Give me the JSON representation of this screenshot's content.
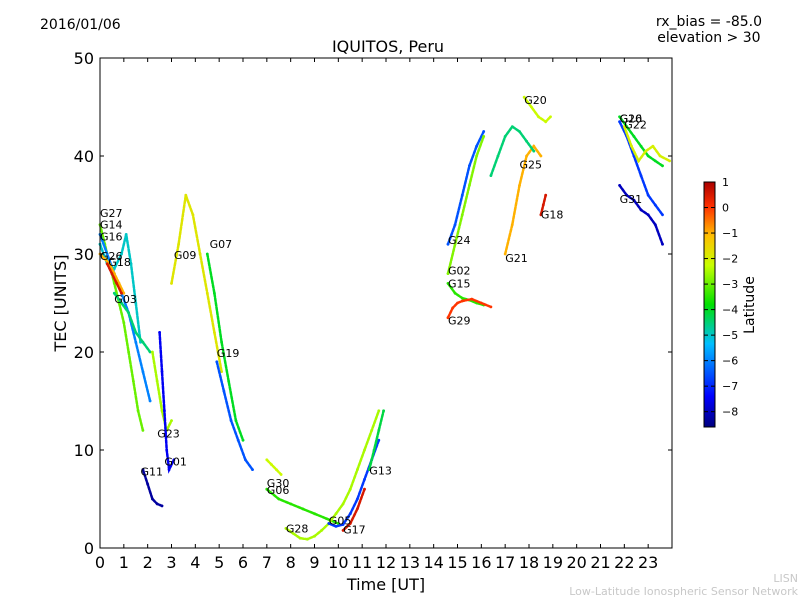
{
  "header": {
    "date": "2016/01/06",
    "rx_bias": "rx_bias = -85.0",
    "elevation": "elevation > 30"
  },
  "footer": {
    "credit_line1": "LISN",
    "credit_line2": "Low-Latitude Ionospheric Sensor Network"
  },
  "chart_data": {
    "type": "scatter",
    "title": "IQUITOS, Peru",
    "xlabel": "Time [UT]",
    "ylabel": "TEC [UNITS]",
    "xlim": [
      0,
      24
    ],
    "ylim": [
      0,
      50
    ],
    "xticks": [
      0,
      1,
      2,
      3,
      4,
      5,
      6,
      7,
      8,
      9,
      10,
      11,
      12,
      13,
      14,
      15,
      16,
      17,
      18,
      19,
      20,
      21,
      22,
      23
    ],
    "yticks": [
      0,
      10,
      20,
      30,
      40,
      50
    ],
    "grid": false,
    "colorbar": {
      "label": "Latitude",
      "range": [
        -8.6,
        1.0
      ],
      "ticks": [
        1,
        0,
        -1,
        -2,
        -3,
        -4,
        -5,
        -6,
        -7,
        -8
      ]
    },
    "series": [
      {
        "name": "G27",
        "label_at": [
          0.0,
          33.8
        ],
        "points": [
          [
            0.0,
            33
          ],
          [
            0.2,
            31
          ],
          [
            0.4,
            29
          ],
          [
            0.6,
            27
          ],
          [
            0.8,
            25
          ],
          [
            1.0,
            23
          ],
          [
            1.2,
            20
          ],
          [
            1.4,
            17
          ],
          [
            1.6,
            14
          ],
          [
            1.8,
            12
          ]
        ],
        "lat": -3.0
      },
      {
        "name": "G14",
        "label_at": [
          0.0,
          32.6
        ],
        "points": [
          [
            0.0,
            32
          ],
          [
            0.3,
            30
          ],
          [
            0.6,
            28
          ],
          [
            0.9,
            26
          ],
          [
            1.2,
            24
          ],
          [
            1.5,
            21
          ],
          [
            1.8,
            18
          ],
          [
            2.1,
            15
          ]
        ],
        "lat": -6.0
      },
      {
        "name": "G16",
        "label_at": [
          0.0,
          31.4
        ],
        "points": [
          [
            0.0,
            31
          ],
          [
            0.3,
            29
          ],
          [
            0.6,
            28.5
          ],
          [
            0.9,
            30
          ],
          [
            1.1,
            32
          ],
          [
            1.3,
            29
          ],
          [
            1.5,
            25
          ],
          [
            1.7,
            21
          ]
        ],
        "lat": -5.0
      },
      {
        "name": "G26",
        "label_at": [
          0.0,
          29.4
        ],
        "points": [
          [
            0.0,
            30
          ],
          [
            0.2,
            29.5
          ],
          [
            0.4,
            29
          ],
          [
            0.6,
            28
          ],
          [
            0.8,
            27
          ],
          [
            1.0,
            26
          ]
        ],
        "lat": -1.0
      },
      {
        "name": "G18",
        "label_at": [
          0.35,
          28.8
        ],
        "points": [
          [
            0.3,
            29
          ],
          [
            0.5,
            28
          ],
          [
            0.7,
            27
          ],
          [
            0.9,
            26
          ]
        ],
        "lat": 0.5
      },
      {
        "name": "G03",
        "label_at": [
          0.6,
          25.0
        ],
        "points": [
          [
            0.6,
            26
          ],
          [
            0.9,
            25
          ],
          [
            1.2,
            24
          ],
          [
            1.5,
            22
          ],
          [
            1.8,
            21
          ],
          [
            2.1,
            20
          ]
        ],
        "lat": -4.5
      },
      {
        "name": "G11",
        "label_at": [
          1.7,
          7.4
        ],
        "points": [
          [
            1.8,
            8
          ],
          [
            2.0,
            6.5
          ],
          [
            2.2,
            5
          ],
          [
            2.4,
            4.5
          ],
          [
            2.6,
            4.3
          ]
        ],
        "lat": -8.3
      },
      {
        "name": "G23",
        "label_at": [
          2.4,
          11.3
        ],
        "points": [
          [
            2.2,
            20
          ],
          [
            2.4,
            17
          ],
          [
            2.6,
            14
          ],
          [
            2.8,
            12
          ],
          [
            3.0,
            13
          ]
        ],
        "lat": -2.5
      },
      {
        "name": "G01",
        "label_at": [
          2.7,
          8.4
        ],
        "points": [
          [
            2.5,
            22
          ],
          [
            2.6,
            18
          ],
          [
            2.7,
            14
          ],
          [
            2.8,
            10
          ],
          [
            2.9,
            8
          ],
          [
            3.1,
            9
          ]
        ],
        "lat": -7.5
      },
      {
        "name": "G09",
        "label_at": [
          3.1,
          29.5
        ],
        "points": [
          [
            3.0,
            27
          ],
          [
            3.3,
            31
          ],
          [
            3.6,
            36
          ],
          [
            3.9,
            34
          ],
          [
            4.2,
            30
          ],
          [
            4.5,
            26
          ],
          [
            4.8,
            22
          ],
          [
            5.1,
            18
          ]
        ],
        "lat": -1.8
      },
      {
        "name": "G07",
        "label_at": [
          4.6,
          30.6
        ],
        "points": [
          [
            4.5,
            30
          ],
          [
            4.8,
            26
          ],
          [
            5.1,
            21
          ],
          [
            5.4,
            17
          ],
          [
            5.7,
            13
          ],
          [
            6.0,
            11
          ]
        ],
        "lat": -4.0
      },
      {
        "name": "G19",
        "label_at": [
          4.9,
          19.5
        ],
        "points": [
          [
            4.9,
            19
          ],
          [
            5.2,
            16
          ],
          [
            5.5,
            13
          ],
          [
            5.8,
            11
          ],
          [
            6.1,
            9
          ],
          [
            6.4,
            8
          ]
        ],
        "lat": -6.5
      },
      {
        "name": "G30",
        "label_at": [
          7.0,
          6.2
        ],
        "points": [
          [
            7.0,
            9
          ],
          [
            7.2,
            8.5
          ],
          [
            7.4,
            8
          ],
          [
            7.6,
            7.5
          ]
        ],
        "lat": -2.2
      },
      {
        "name": "G06",
        "label_at": [
          7.0,
          5.5
        ],
        "points": [
          [
            7.0,
            6
          ],
          [
            7.5,
            5
          ],
          [
            8.0,
            4.5
          ],
          [
            8.5,
            4
          ],
          [
            9.0,
            3.5
          ],
          [
            9.5,
            3
          ],
          [
            10.0,
            2.5
          ]
        ],
        "lat": -3.5
      },
      {
        "name": "G28",
        "label_at": [
          7.8,
          1.6
        ],
        "points": [
          [
            7.8,
            2
          ],
          [
            8.1,
            1.5
          ],
          [
            8.4,
            1
          ],
          [
            8.7,
            0.9
          ],
          [
            9.0,
            1.2
          ],
          [
            9.3,
            1.8
          ],
          [
            9.6,
            2.5
          ],
          [
            9.9,
            3.5
          ],
          [
            10.2,
            4.5
          ],
          [
            10.5,
            6
          ],
          [
            10.8,
            8
          ],
          [
            11.1,
            10
          ],
          [
            11.4,
            12
          ],
          [
            11.7,
            14
          ]
        ],
        "lat": -2.5
      },
      {
        "name": "G05",
        "label_at": [
          9.6,
          2.4
        ],
        "points": [
          [
            9.6,
            2.5
          ],
          [
            9.9,
            2.2
          ],
          [
            10.2,
            2.4
          ],
          [
            10.5,
            3.5
          ],
          [
            10.8,
            5
          ],
          [
            11.1,
            7
          ],
          [
            11.4,
            9
          ],
          [
            11.7,
            11
          ]
        ],
        "lat": -6.8
      },
      {
        "name": "G17",
        "label_at": [
          10.2,
          1.5
        ],
        "points": [
          [
            10.2,
            1.8
          ],
          [
            10.5,
            2.5
          ],
          [
            10.8,
            4
          ],
          [
            11.1,
            6
          ]
        ],
        "lat": 0.5
      },
      {
        "name": "G13",
        "label_at": [
          11.3,
          7.5
        ],
        "points": [
          [
            11.3,
            8
          ],
          [
            11.5,
            10
          ],
          [
            11.7,
            12
          ],
          [
            11.9,
            14
          ]
        ],
        "lat": -4.2
      },
      {
        "name": "G24",
        "label_at": [
          14.6,
          31.0
        ],
        "points": [
          [
            14.6,
            31
          ],
          [
            14.9,
            33
          ],
          [
            15.2,
            36
          ],
          [
            15.5,
            39
          ],
          [
            15.8,
            41
          ],
          [
            16.1,
            42.5
          ]
        ],
        "lat": -6.5
      },
      {
        "name": "G02",
        "label_at": [
          14.6,
          27.9
        ],
        "points": [
          [
            14.6,
            28
          ],
          [
            14.9,
            31
          ],
          [
            15.2,
            34
          ],
          [
            15.5,
            37
          ],
          [
            15.8,
            40
          ],
          [
            16.1,
            42
          ]
        ],
        "lat": -2.8
      },
      {
        "name": "G15",
        "label_at": [
          14.6,
          26.6
        ],
        "points": [
          [
            14.6,
            27
          ],
          [
            14.9,
            26
          ],
          [
            15.2,
            25.5
          ],
          [
            15.5,
            25.3
          ],
          [
            15.8,
            25
          ],
          [
            16.1,
            24.8
          ]
        ],
        "lat": -3.5
      },
      {
        "name": "G29",
        "label_at": [
          14.6,
          22.8
        ],
        "points": [
          [
            14.6,
            23.5
          ],
          [
            14.8,
            24.5
          ],
          [
            15.0,
            25
          ],
          [
            15.2,
            25.2
          ],
          [
            15.6,
            25.4
          ],
          [
            16.0,
            25
          ],
          [
            16.4,
            24.6
          ]
        ],
        "lat": 0.0
      },
      {
        "name": "G21",
        "label_at": [
          17.0,
          29.2
        ],
        "points": [
          [
            17.0,
            30
          ],
          [
            17.3,
            33
          ],
          [
            17.6,
            37
          ],
          [
            17.9,
            40
          ],
          [
            18.2,
            41
          ],
          [
            18.5,
            40
          ]
        ],
        "lat": -1.0
      },
      {
        "name": "G20",
        "label_at": [
          17.8,
          45.3
        ],
        "points": [
          [
            17.8,
            46
          ],
          [
            18.1,
            45
          ],
          [
            18.4,
            44
          ],
          [
            18.7,
            43.5
          ],
          [
            18.9,
            44
          ]
        ],
        "lat": -2.2
      },
      {
        "name": "G25",
        "label_at": [
          17.6,
          38.7
        ],
        "points": [
          [
            16.4,
            38
          ],
          [
            16.7,
            40
          ],
          [
            17.0,
            42
          ],
          [
            17.3,
            43
          ],
          [
            17.6,
            42.5
          ],
          [
            17.9,
            41.5
          ],
          [
            18.2,
            40.5
          ]
        ],
        "lat": -4.5
      },
      {
        "name": "G18",
        "label_at": [
          18.5,
          33.6
        ],
        "points": [
          [
            18.5,
            34
          ],
          [
            18.6,
            35
          ],
          [
            18.7,
            36
          ]
        ],
        "lat": 0.5
      },
      {
        "name": "G10",
        "label_at": [
          21.8,
          43.4
        ],
        "points": [
          [
            21.8,
            44
          ],
          [
            22.1,
            43
          ],
          [
            22.4,
            42
          ],
          [
            22.7,
            41
          ],
          [
            23.0,
            40
          ],
          [
            23.3,
            39.5
          ],
          [
            23.6,
            39
          ]
        ],
        "lat": -4.0
      },
      {
        "name": "G26",
        "label_at": [
          21.8,
          43.4
        ],
        "points": [
          [
            21.8,
            43.5
          ],
          [
            22.1,
            42
          ],
          [
            22.4,
            40
          ],
          [
            22.7,
            38
          ],
          [
            23.0,
            36
          ],
          [
            23.3,
            35
          ],
          [
            23.6,
            34
          ]
        ],
        "lat": -6.8
      },
      {
        "name": "G22",
        "label_at": [
          22.0,
          42.8
        ],
        "points": [
          [
            22.0,
            43
          ],
          [
            22.3,
            41
          ],
          [
            22.6,
            39.5
          ],
          [
            22.9,
            40.5
          ],
          [
            23.2,
            41
          ],
          [
            23.5,
            40
          ],
          [
            23.9,
            39.5
          ]
        ],
        "lat": -2.0
      },
      {
        "name": "G31",
        "label_at": [
          21.8,
          35.2
        ],
        "points": [
          [
            21.8,
            37
          ],
          [
            22.1,
            36
          ],
          [
            22.4,
            35.5
          ],
          [
            22.7,
            34.5
          ],
          [
            23.0,
            34
          ],
          [
            23.3,
            33
          ],
          [
            23.6,
            31
          ]
        ],
        "lat": -8.0
      }
    ]
  }
}
